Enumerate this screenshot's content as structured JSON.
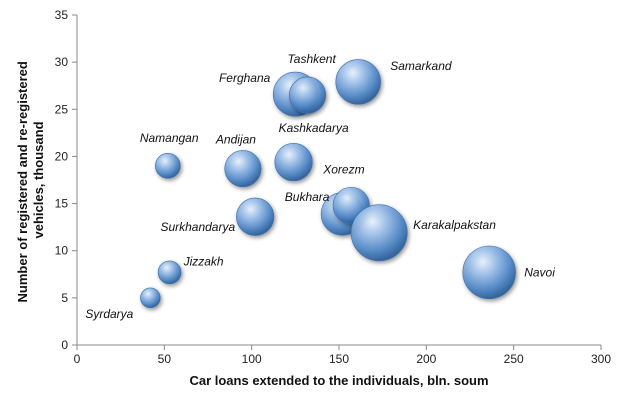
{
  "chart_data": {
    "type": "scatter",
    "xlabel": "Car loans extended to the individuals, bln. soum",
    "ylabel_lines": [
      "Number of registered and re-registered",
      "vehicles, thousand"
    ],
    "xlim": [
      0,
      300
    ],
    "ylim": [
      0,
      35
    ],
    "x_ticks": [
      "0",
      "50",
      "100",
      "150",
      "200",
      "250",
      "300"
    ],
    "y_ticks": [
      "0",
      "5",
      "10",
      "15",
      "20",
      "25",
      "30",
      "35"
    ],
    "grid": false,
    "legend": "none",
    "bubble_color": "#4f86c6",
    "points": [
      {
        "name": "Syrdarya",
        "x": 42,
        "y": 5.0,
        "size": 0.3
      },
      {
        "name": "Jizzakh",
        "x": 53,
        "y": 7.7,
        "size": 0.35
      },
      {
        "name": "Namangan",
        "x": 52,
        "y": 19.0,
        "size": 0.38
      },
      {
        "name": "Andijan",
        "x": 95,
        "y": 18.7,
        "size": 0.55
      },
      {
        "name": "Surkhandarya",
        "x": 102,
        "y": 13.6,
        "size": 0.57
      },
      {
        "name": "Kashkadarya",
        "x": 124,
        "y": 19.4,
        "size": 0.57
      },
      {
        "name": "Ferghana",
        "x": 125,
        "y": 26.6,
        "size": 0.67
      },
      {
        "name": "Tashkent",
        "x": 132,
        "y": 26.5,
        "size": 0.55
      },
      {
        "name": "Samarkand",
        "x": 161,
        "y": 27.9,
        "size": 0.68
      },
      {
        "name": "Bukhara",
        "x": 152,
        "y": 13.9,
        "size": 0.65
      },
      {
        "name": "Xorezm",
        "x": 157,
        "y": 14.8,
        "size": 0.55
      },
      {
        "name": "Karakalpakstan",
        "x": 173,
        "y": 11.9,
        "size": 0.85
      },
      {
        "name": "Navoi",
        "x": 236,
        "y": 7.7,
        "size": 0.8
      }
    ]
  }
}
